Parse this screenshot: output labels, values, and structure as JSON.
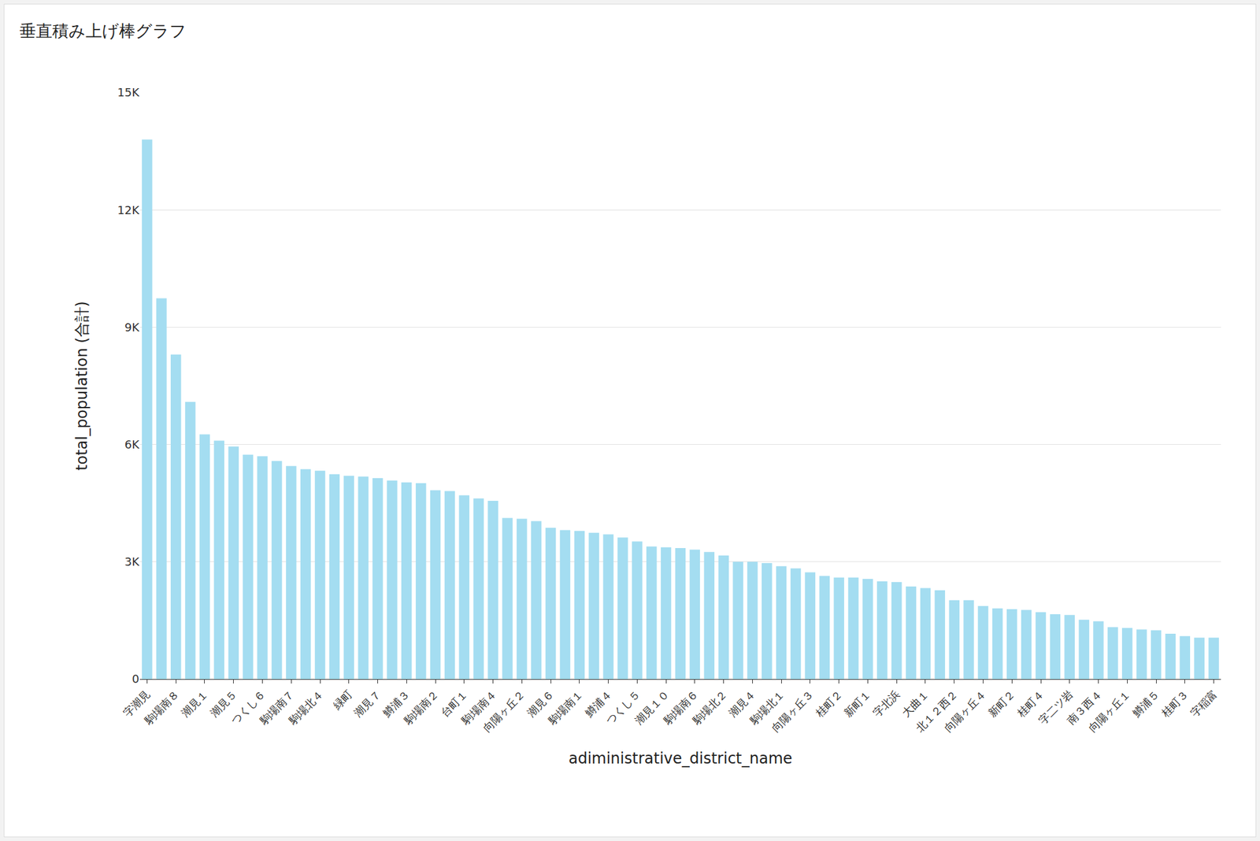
{
  "chart_data": {
    "type": "bar",
    "title": "垂直積み上げ棒グラフ",
    "x_label": "adiministrative_district_name",
    "y_label": "total_population (合計)",
    "categories": [
      "字潮見",
      null,
      "駒場南８",
      null,
      "潮見１",
      null,
      "潮見５",
      null,
      "つくし６",
      null,
      "駒場南７",
      null,
      "駒場北４",
      null,
      "緑町",
      null,
      "潮見７",
      null,
      "鱒浦３",
      null,
      "駒場南２",
      null,
      "台町１",
      null,
      "駒場南４",
      null,
      "向陽ヶ丘２",
      null,
      "潮見６",
      null,
      "駒場南１",
      null,
      "鱒浦４",
      null,
      "つくし５",
      null,
      "潮見１０",
      null,
      "駒場南６",
      null,
      "駒場北２",
      null,
      "潮見４",
      null,
      "駒場北１",
      null,
      "向陽ヶ丘３",
      null,
      "桂町２",
      null,
      "新町１",
      null,
      "字北浜",
      null,
      "大曲１",
      null,
      "北１２西２",
      null,
      "向陽ヶ丘４",
      null,
      "新町２",
      null,
      "桂町４",
      null,
      "字二ツ岩",
      null,
      "南３西４",
      null,
      "向陽ヶ丘１",
      null,
      "鱒浦５",
      null,
      "桂町３",
      null,
      "字稲富"
    ],
    "values": [
      13800,
      9740,
      8300,
      7090,
      6260,
      6100,
      5950,
      5740,
      5700,
      5580,
      5450,
      5370,
      5330,
      5240,
      5200,
      5180,
      5140,
      5080,
      5030,
      5010,
      4830,
      4810,
      4700,
      4620,
      4560,
      4120,
      4100,
      4040,
      3870,
      3810,
      3790,
      3740,
      3700,
      3620,
      3520,
      3390,
      3370,
      3350,
      3310,
      3250,
      3160,
      3000,
      3000,
      2970,
      2890,
      2830,
      2730,
      2640,
      2600,
      2600,
      2560,
      2500,
      2480,
      2370,
      2330,
      2270,
      2020,
      2020,
      1870,
      1810,
      1790,
      1770,
      1710,
      1660,
      1640,
      1520,
      1480,
      1330,
      1310,
      1270,
      1250,
      1160,
      1100,
      1060,
      1060
    ],
    "color": "#a4ddf1",
    "ylim": [
      0,
      15000
    ],
    "yticks": [
      0,
      {
        "value": 3000,
        "label": "3K"
      },
      {
        "value": 6000,
        "label": "6K"
      },
      {
        "value": 9000,
        "label": "9K"
      },
      {
        "value": 12000,
        "label": "12K"
      },
      {
        "value": 15000,
        "label": "15K"
      }
    ],
    "grid": true
  }
}
